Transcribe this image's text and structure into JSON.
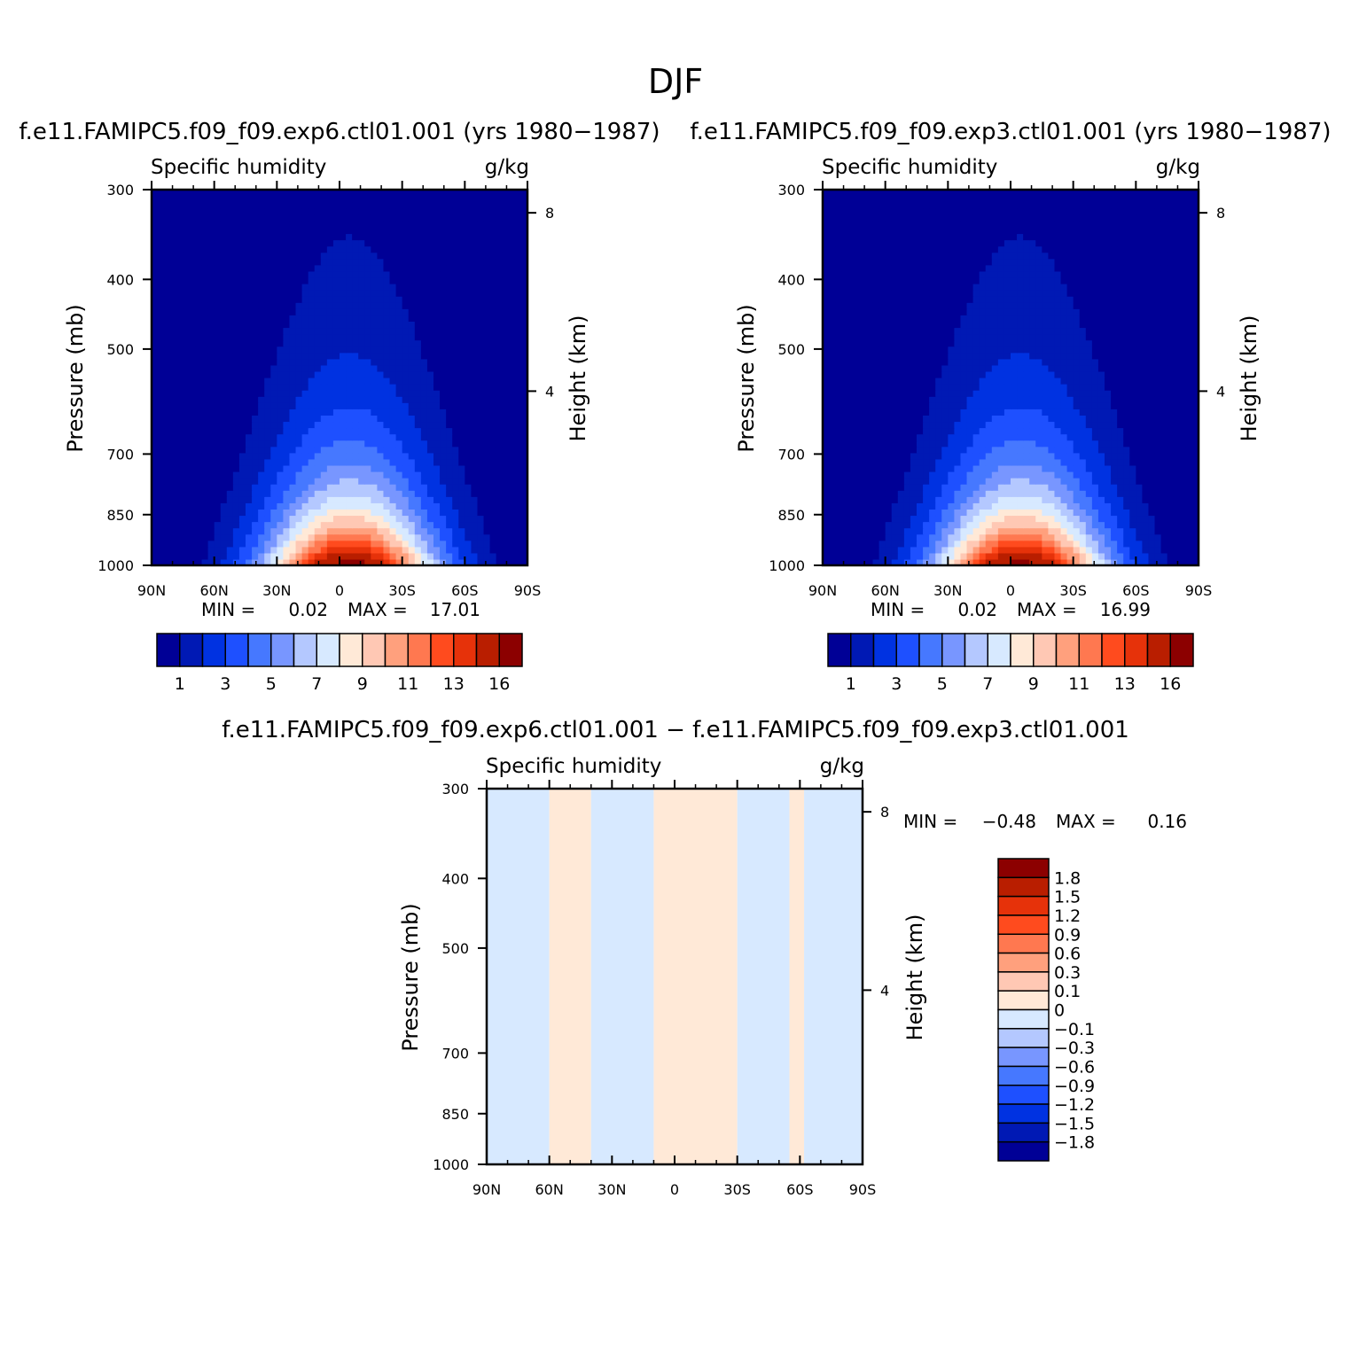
{
  "figure_title": "DJF",
  "colors": {
    "seq_levels": [
      "#000096",
      "#0019b4",
      "#0032e1",
      "#1e50ff",
      "#4678ff",
      "#7896ff",
      "#b4c8ff",
      "#d7e9ff",
      "#ffe9d7",
      "#ffc8b4",
      "#ffa07d",
      "#ff7850",
      "#ff4b1e",
      "#e6320a",
      "#b91e00",
      "#8c0000"
    ],
    "diff_levels": [
      "#000096",
      "#0019b4",
      "#0032e1",
      "#1e50ff",
      "#4678ff",
      "#7896ff",
      "#b4c8ff",
      "#d7e9ff",
      "#ffe9d7",
      "#ffc8b4",
      "#ffa07d",
      "#ff7850",
      "#ff4b1e",
      "#e6320a",
      "#b91e00",
      "#8c0000"
    ]
  },
  "chart_data": [
    {
      "type": "heatmap",
      "title": "f.e11.FAMIPC5.f09_f09.exp6.ctl01.001 (yrs 1980−1987)",
      "left_string": "Specific humidity",
      "right_string": "g/kg",
      "xlabel": "",
      "ylabel": "Pressure (mb)",
      "ylabel_right": "Height (km)",
      "x_ticks": [
        {
          "v": -90,
          "label": "90N"
        },
        {
          "v": -60,
          "label": "60N"
        },
        {
          "v": -30,
          "label": "30N"
        },
        {
          "v": 0,
          "label": "0"
        },
        {
          "v": 30,
          "label": "30S"
        },
        {
          "v": 60,
          "label": "60S"
        },
        {
          "v": 90,
          "label": "90S"
        }
      ],
      "y_ticks": [
        300,
        400,
        500,
        700,
        850,
        1000
      ],
      "y_right_ticks": [
        8,
        4
      ],
      "xlim": [
        -90,
        90
      ],
      "ylim": [
        1000,
        300
      ],
      "min_label": "MIN =",
      "min_value": "0.02",
      "max_label": "MAX =",
      "max_value": "17.01",
      "colorbar_labels": [
        "1",
        "3",
        "5",
        "7",
        "9",
        "11",
        "13",
        "16"
      ],
      "levels": [
        1,
        2,
        3,
        4,
        5,
        6,
        7,
        8,
        9,
        10,
        11,
        12,
        13,
        14,
        16
      ],
      "field": {
        "peak": 17.01,
        "center_lat": 5,
        "lat_width": 42,
        "scale_height_mb": 230
      }
    },
    {
      "type": "heatmap",
      "title": "f.e11.FAMIPC5.f09_f09.exp3.ctl01.001 (yrs 1980−1987)",
      "left_string": "Specific humidity",
      "right_string": "g/kg",
      "xlabel": "",
      "ylabel": "Pressure (mb)",
      "ylabel_right": "Height (km)",
      "x_ticks": [
        {
          "v": -90,
          "label": "90N"
        },
        {
          "v": -60,
          "label": "60N"
        },
        {
          "v": -30,
          "label": "30N"
        },
        {
          "v": 0,
          "label": "0"
        },
        {
          "v": 30,
          "label": "30S"
        },
        {
          "v": 60,
          "label": "60S"
        },
        {
          "v": 90,
          "label": "90S"
        }
      ],
      "y_ticks": [
        300,
        400,
        500,
        700,
        850,
        1000
      ],
      "y_right_ticks": [
        8,
        4
      ],
      "xlim": [
        -90,
        90
      ],
      "ylim": [
        1000,
        300
      ],
      "min_label": "MIN =",
      "min_value": "0.02",
      "max_label": "MAX =",
      "max_value": "16.99",
      "colorbar_labels": [
        "1",
        "3",
        "5",
        "7",
        "9",
        "11",
        "13",
        "16"
      ],
      "levels": [
        1,
        2,
        3,
        4,
        5,
        6,
        7,
        8,
        9,
        10,
        11,
        12,
        13,
        14,
        16
      ],
      "field": {
        "peak": 16.99,
        "center_lat": 5,
        "lat_width": 42,
        "scale_height_mb": 230
      }
    },
    {
      "type": "heatmap",
      "title": "f.e11.FAMIPC5.f09_f09.exp6.ctl01.001 − f.e11.FAMIPC5.f09_f09.exp3.ctl01.001",
      "left_string": "Specific humidity",
      "right_string": "g/kg",
      "xlabel": "",
      "ylabel": "Pressure (mb)",
      "ylabel_right": "Height (km)",
      "x_ticks": [
        {
          "v": -90,
          "label": "90N"
        },
        {
          "v": -60,
          "label": "60N"
        },
        {
          "v": -30,
          "label": "30N"
        },
        {
          "v": 0,
          "label": "0"
        },
        {
          "v": 30,
          "label": "30S"
        },
        {
          "v": 60,
          "label": "60S"
        },
        {
          "v": 90,
          "label": "90S"
        }
      ],
      "y_ticks": [
        300,
        400,
        500,
        700,
        850,
        1000
      ],
      "y_right_ticks": [
        8,
        4
      ],
      "xlim": [
        -90,
        90
      ],
      "ylim": [
        1000,
        300
      ],
      "min_label": "MIN =",
      "min_value": "−0.48",
      "max_label": "MAX =",
      "max_value": "0.16",
      "colorbar_labels": [
        "1.8",
        "1.5",
        "1.2",
        "0.9",
        "0.6",
        "0.3",
        "0.1",
        "0",
        "−0.1",
        "−0.3",
        "−0.6",
        "−0.9",
        "−1.2",
        "−1.5",
        "−1.8"
      ],
      "bands": [
        {
          "lat": [
            -90,
            -60
          ],
          "sign": "negative"
        },
        {
          "lat": [
            -60,
            -40
          ],
          "sign": "positive"
        },
        {
          "lat": [
            -40,
            -10
          ],
          "sign": "negative"
        },
        {
          "lat": [
            -10,
            30
          ],
          "sign": "positive"
        },
        {
          "lat": [
            30,
            55
          ],
          "sign": "negative"
        },
        {
          "lat": [
            55,
            62
          ],
          "sign": "positive"
        },
        {
          "lat": [
            62,
            90
          ],
          "sign": "negative"
        }
      ]
    }
  ]
}
